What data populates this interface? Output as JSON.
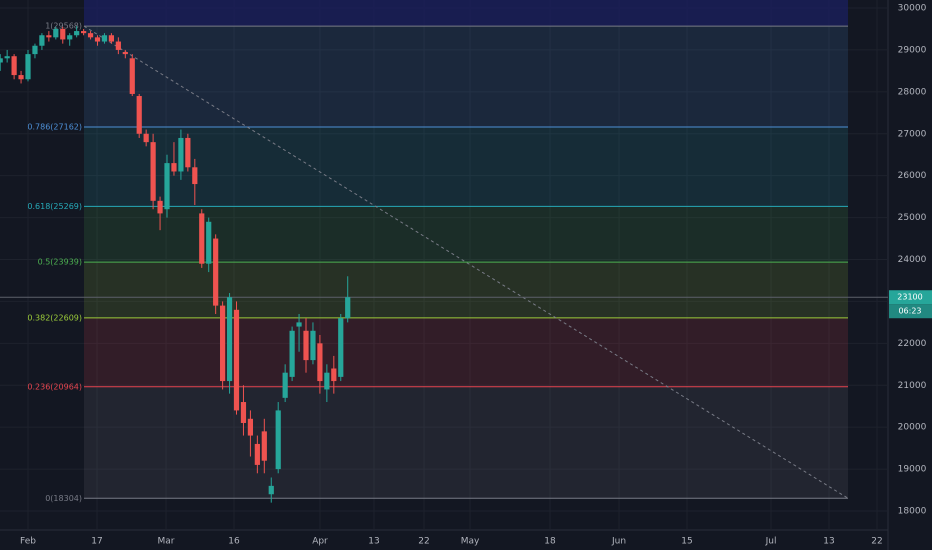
{
  "chart_data": {
    "type": "candlestick",
    "up_color": "#26a69a",
    "down_color": "#ef5350",
    "grid": true,
    "xlim": [
      -4.03,
      123.74
    ],
    "xticks": [
      {
        "value": 0,
        "label": "Feb"
      },
      {
        "value": 9.93,
        "label": "17"
      },
      {
        "value": 19.86,
        "label": "Mar"
      },
      {
        "value": 29.64,
        "label": "16"
      },
      {
        "value": 42.01,
        "label": "Apr"
      },
      {
        "value": 49.78,
        "label": "13"
      },
      {
        "value": 56.98,
        "label": "22"
      },
      {
        "value": 63.6,
        "label": "May"
      },
      {
        "value": 75.11,
        "label": "18"
      },
      {
        "value": 85.04,
        "label": "Jun"
      },
      {
        "value": 94.82,
        "label": "15"
      },
      {
        "value": 106.91,
        "label": "Jul"
      },
      {
        "value": 115.25,
        "label": "13"
      },
      {
        "value": 122.16,
        "label": "22"
      }
    ],
    "ylim": [
      17547,
      30191
    ],
    "yticks": [
      18000,
      19000,
      20000,
      21000,
      22000,
      23000,
      24000,
      25000,
      26000,
      27000,
      28000,
      29000,
      30000
    ],
    "x": [
      -4,
      -3,
      -2,
      -1,
      0,
      1,
      2,
      3,
      4,
      5,
      6,
      7,
      8,
      9,
      10,
      11,
      12,
      13,
      14,
      15,
      16,
      17,
      18,
      19,
      20,
      21,
      22,
      23,
      24,
      25,
      26,
      27,
      28,
      29,
      30,
      31,
      32,
      33,
      34,
      35,
      36,
      37,
      38,
      39,
      40,
      41,
      42,
      43,
      44,
      45,
      46
    ],
    "open": [
      28700,
      28800,
      28850,
      28400,
      28300,
      28900,
      29100,
      29350,
      29300,
      29500,
      29250,
      29350,
      29450,
      29400,
      29300,
      29200,
      29350,
      29200,
      28950,
      28800,
      27900,
      27000,
      26800,
      25400,
      25200,
      26300,
      26100,
      26900,
      26200,
      25100,
      23900,
      24500,
      22900,
      21100,
      22800,
      20600,
      20200,
      19600,
      19900,
      18400,
      19000,
      20700,
      21200,
      22400,
      22300,
      21600,
      22000,
      20900,
      21400,
      21200,
      22600
    ],
    "high": [
      28900,
      29000,
      28900,
      28500,
      29000,
      29150,
      29400,
      29450,
      29550,
      29550,
      29400,
      29568,
      29500,
      29450,
      29350,
      29400,
      29400,
      29300,
      29000,
      28900,
      27950,
      27100,
      27000,
      25500,
      26500,
      26800,
      27100,
      27000,
      26400,
      25200,
      25000,
      24600,
      23000,
      23200,
      23000,
      21000,
      20400,
      19800,
      20200,
      18800,
      20600,
      21500,
      22400,
      22700,
      22600,
      22500,
      22200,
      21500,
      21700,
      22700,
      23600
    ],
    "low": [
      28500,
      28700,
      28300,
      28200,
      28250,
      28800,
      29000,
      29200,
      29250,
      29150,
      29100,
      29300,
      29350,
      29250,
      29100,
      29150,
      29150,
      28900,
      28800,
      27900,
      26900,
      26700,
      25200,
      24700,
      25000,
      26000,
      25900,
      26100,
      25300,
      23800,
      23700,
      22700,
      20900,
      20800,
      20300,
      19800,
      19300,
      18900,
      18900,
      18200,
      18900,
      20600,
      21100,
      21800,
      21300,
      21500,
      20800,
      20600,
      20800,
      21100,
      22500
    ],
    "close": [
      28800,
      28850,
      28400,
      28300,
      28900,
      29100,
      29350,
      29300,
      29500,
      29250,
      29350,
      29450,
      29400,
      29300,
      29200,
      29350,
      29200,
      29000,
      28900,
      27950,
      27000,
      26800,
      25400,
      25100,
      26300,
      26100,
      26900,
      26200,
      25800,
      23900,
      24900,
      22900,
      21100,
      23100,
      20400,
      20100,
      19800,
      19100,
      19200,
      18600,
      20400,
      21300,
      22300,
      22500,
      21600,
      22300,
      21100,
      21300,
      21100,
      22600,
      23100
    ],
    "fib_levels": [
      {
        "value": 29568,
        "label": "1(29568)",
        "color": "#787b86"
      },
      {
        "value": 27162,
        "label": "0.786(27162)",
        "color": "#4d8fd6"
      },
      {
        "value": 25269,
        "label": "0.618(25269)",
        "color": "#26a9b8"
      },
      {
        "value": 23939,
        "label": "0.5(23939)",
        "color": "#4caf50"
      },
      {
        "value": 22609,
        "label": "0.382(22609)",
        "color": "#9ccc3a"
      },
      {
        "value": 20964,
        "label": "0.236(20964)",
        "color": "#e5454f"
      },
      {
        "value": 18304,
        "label": "0(18304)",
        "color": "#787b86"
      }
    ],
    "last_price": 23100,
    "countdown": "06:23"
  }
}
